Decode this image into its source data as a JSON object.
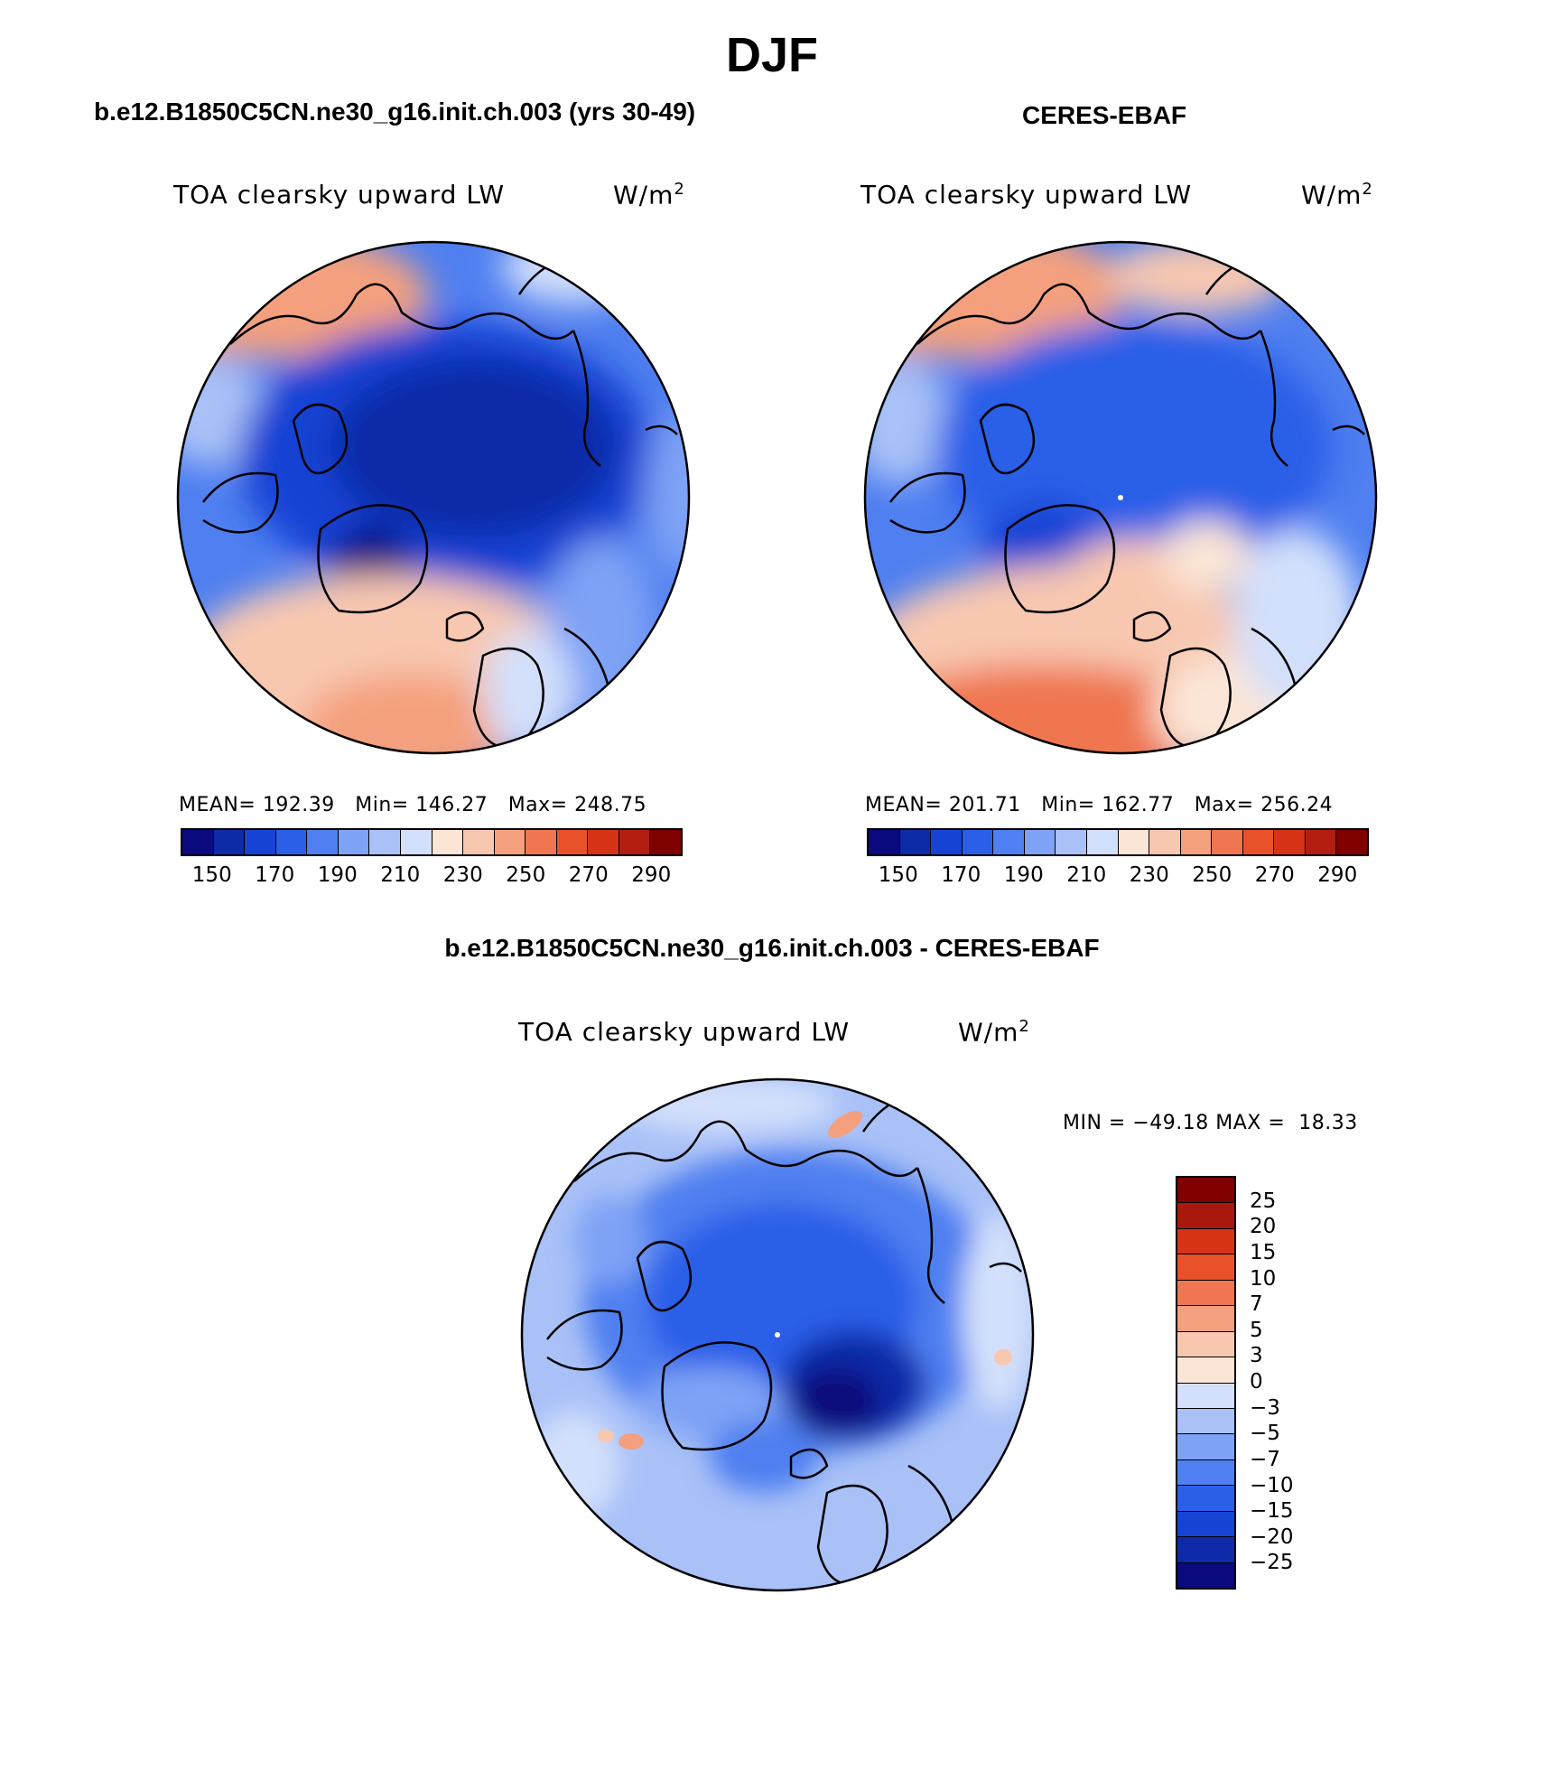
{
  "figure": {
    "season": "DJF",
    "difference_title": "b.e12.B1850C5CN.ne30_g16.init.ch.003 - CERES-EBAF"
  },
  "panels": [
    {
      "title": "b.e12.B1850C5CN.ne30_g16.init.ch.003 (yrs 30-49)",
      "variable": "TOA clearsky upward LW",
      "unit_base": "W/m",
      "unit_exp": "2",
      "stats": "MEAN= 192.39   Min= 146.27   Max= 248.75"
    },
    {
      "title": "CERES-EBAF",
      "variable": "TOA clearsky upward LW",
      "unit_base": "W/m",
      "unit_exp": "2",
      "stats": "MEAN= 201.71   Min= 162.77   Max= 256.24"
    },
    {
      "title": "",
      "variable": "TOA clearsky upward LW",
      "unit_base": "W/m",
      "unit_exp": "2",
      "stats": "MIN = −49.18 MAX =  18.33"
    }
  ],
  "colorbars": {
    "absolute": {
      "labels": [
        "150",
        "170",
        "190",
        "210",
        "230",
        "250",
        "270",
        "290"
      ],
      "colors": [
        "#0a0a7e",
        "#0d2aa8",
        "#1743d4",
        "#2b5fe8",
        "#4f7ff0",
        "#7ea2f5",
        "#a9c1f7",
        "#d3e0fb",
        "#fbe5d6",
        "#f8c7b0",
        "#f4a07e",
        "#ef7650",
        "#e9512b",
        "#d63317",
        "#b21e10",
        "#800000"
      ]
    },
    "difference": {
      "labels": [
        "25",
        "20",
        "15",
        "10",
        "7",
        "5",
        "3",
        "0",
        "−3",
        "−5",
        "−7",
        "−10",
        "−15",
        "−20",
        "−25"
      ],
      "colors": [
        "#800000",
        "#a8180c",
        "#d63317",
        "#e9512b",
        "#ef7650",
        "#f4a07e",
        "#f8c7b0",
        "#fbe5d6",
        "#d3e0fb",
        "#a9c1f7",
        "#7ea2f5",
        "#4f7ff0",
        "#2b5fe8",
        "#1743d4",
        "#0d2aa8",
        "#0a0a7e"
      ]
    }
  }
}
